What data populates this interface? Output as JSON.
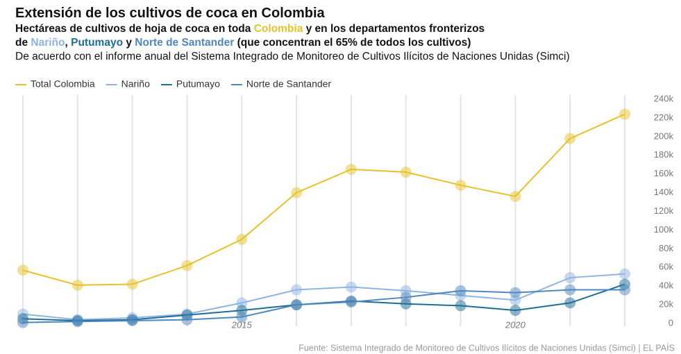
{
  "chart_data": {
    "type": "line",
    "title": "Extensión de los cultivos de coca en Colombia",
    "subtitle_lines": [
      [
        {
          "text": "Hectáreas de cultivos de hoja de coca en toda "
        },
        {
          "text": "Colombia",
          "color": "#e6c229"
        },
        {
          "text": " y en los departamentos fronterizos"
        }
      ],
      [
        {
          "text": "de "
        },
        {
          "text": "Nariño",
          "color": "#8db4e2"
        },
        {
          "text": ", "
        },
        {
          "text": "Putumayo",
          "color": "#1d6e96"
        },
        {
          "text": " y "
        },
        {
          "text": "Norte de Santander",
          "color": "#4f87c0"
        },
        {
          "text": " (que concentran el 65% de todos los cultivos)"
        }
      ]
    ],
    "description": "De acuerdo con el informe anual del Sistema Integrado de Monitoreo de Cultivos Ilícitos de Naciones Unidas (Simci)",
    "source": "Fuente: Sistema Integrado de Monitoreo de Cultivos Ilícitos de Naciones Unidas (Simci) | EL PAÍS",
    "x": [
      2011,
      2012,
      2013,
      2014,
      2015,
      2016,
      2017,
      2018,
      2019,
      2020,
      2021,
      2022
    ],
    "xlim": [
      2011,
      2022
    ],
    "xticks": [
      2015,
      2020
    ],
    "ylim": [
      0,
      240000
    ],
    "yticks": [
      0,
      {
        "value": 20000,
        "label": "20k"
      },
      {
        "value": 40000,
        "label": "40k"
      },
      {
        "value": 60000,
        "label": "60k"
      },
      {
        "value": 80000,
        "label": "80k"
      },
      {
        "value": 100000,
        "label": "100k"
      },
      {
        "value": 120000,
        "label": "120k"
      },
      {
        "value": 140000,
        "label": "140k"
      },
      {
        "value": 160000,
        "label": "160k"
      },
      {
        "value": 180000,
        "label": "180k"
      },
      {
        "value": 200000,
        "label": "200k"
      },
      {
        "value": 220000,
        "label": "220k"
      },
      {
        "value": 240000,
        "label": "240k"
      }
    ],
    "grid": true,
    "series": [
      {
        "name": "Total Colombia",
        "color": "#e6c229",
        "values": [
          57000,
          41000,
          42000,
          62000,
          90000,
          140000,
          165000,
          162000,
          148000,
          136000,
          198000,
          224000
        ]
      },
      {
        "name": "Nariño",
        "color": "#8db4e2",
        "values": [
          10000,
          4000,
          6000,
          10000,
          22000,
          36000,
          39000,
          35000,
          30000,
          25000,
          49000,
          53000
        ]
      },
      {
        "name": "Putumayo",
        "color": "#1d6e96",
        "values": [
          5000,
          3000,
          4000,
          9000,
          14000,
          20000,
          24000,
          21000,
          19000,
          14000,
          22000,
          42000
        ]
      },
      {
        "name": "Norte de Santander",
        "color": "#4f87c0",
        "values": [
          1000,
          2000,
          3000,
          4000,
          7000,
          20000,
          23000,
          28000,
          35000,
          33000,
          36000,
          36000
        ]
      }
    ]
  }
}
